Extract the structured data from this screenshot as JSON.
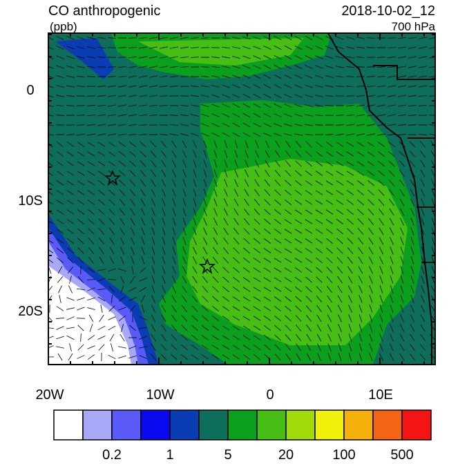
{
  "header": {
    "title": "CO anthropogenic",
    "units": "(ppb)",
    "time": "2018-10-02_12",
    "level": "700 hPa"
  },
  "axes": {
    "y_labels": [
      "0",
      "10S",
      "20S"
    ],
    "x_labels": [
      "20W",
      "10W",
      "0",
      "10E"
    ]
  },
  "colorbar": {
    "colors": [
      "#ffffff",
      "#a8a8f8",
      "#5a5af8",
      "#0a0af0",
      "#0a3cb4",
      "#0d6e5c",
      "#0aa01e",
      "#46be14",
      "#a0dc0a",
      "#f0f00a",
      "#f5af0a",
      "#f56414",
      "#f51414"
    ],
    "labels": [
      "0.2",
      "1",
      "5",
      "20",
      "100",
      "500"
    ]
  }
}
